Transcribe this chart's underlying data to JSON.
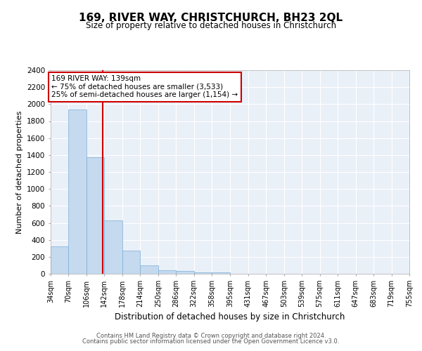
{
  "title": "169, RIVER WAY, CHRISTCHURCH, BH23 2QL",
  "subtitle": "Size of property relative to detached houses in Christchurch",
  "xlabel": "Distribution of detached houses by size in Christchurch",
  "ylabel": "Number of detached properties",
  "bar_color": "#c5d9ef",
  "bar_edge_color": "#7bafd4",
  "background_color": "#eaf0f8",
  "grid_color": "#ffffff",
  "vline_value": 139,
  "vline_color": "#cc0000",
  "bin_edges": [
    34,
    70,
    106,
    142,
    178,
    214,
    250,
    286,
    322,
    358,
    395,
    431,
    467,
    503,
    539,
    575,
    611,
    647,
    683,
    719,
    755
  ],
  "bin_labels": [
    "34sqm",
    "70sqm",
    "106sqm",
    "142sqm",
    "178sqm",
    "214sqm",
    "250sqm",
    "286sqm",
    "322sqm",
    "358sqm",
    "395sqm",
    "431sqm",
    "467sqm",
    "503sqm",
    "539sqm",
    "575sqm",
    "611sqm",
    "647sqm",
    "683sqm",
    "719sqm",
    "755sqm"
  ],
  "counts": [
    320,
    1940,
    1370,
    630,
    270,
    100,
    45,
    30,
    20,
    15,
    0,
    0,
    0,
    0,
    0,
    0,
    0,
    0,
    0,
    0
  ],
  "ylim": [
    0,
    2400
  ],
  "yticks": [
    0,
    200,
    400,
    600,
    800,
    1000,
    1200,
    1400,
    1600,
    1800,
    2000,
    2200,
    2400
  ],
  "annotation_text": "169 RIVER WAY: 139sqm\n← 75% of detached houses are smaller (3,533)\n25% of semi-detached houses are larger (1,154) →",
  "annotation_box_color": "#ffffff",
  "annotation_box_edge": "#cc0000",
  "footer_line1": "Contains HM Land Registry data © Crown copyright and database right 2024.",
  "footer_line2": "Contains public sector information licensed under the Open Government Licence v3.0."
}
